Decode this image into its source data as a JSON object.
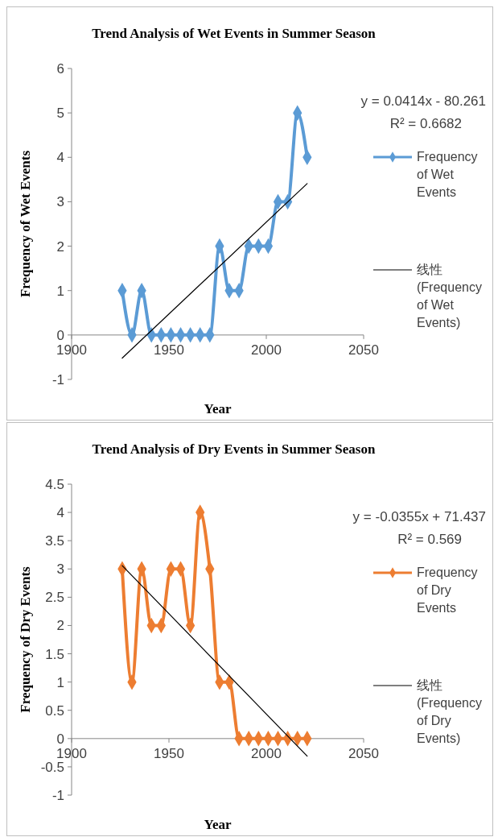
{
  "chart_data": [
    {
      "type": "line",
      "title": "Trend Analysis of Wet Events in Summer Season",
      "xlabel": "Year",
      "ylabel": "Frequency of Wet Events",
      "xlim": [
        1900,
        2050
      ],
      "xticks": [
        1900,
        1950,
        2000,
        2050
      ],
      "ylim": [
        -1,
        6
      ],
      "yticks": [
        -1,
        0,
        1,
        2,
        3,
        4,
        5,
        6
      ],
      "legend": "right",
      "marker": "diamond",
      "series": [
        {
          "name": "Frequency of Wet Events",
          "color": "#5b9bd5",
          "x": [
            1926,
            1931,
            1936,
            1941,
            1946,
            1951,
            1956,
            1961,
            1966,
            1971,
            1976,
            1981,
            1986,
            1991,
            1996,
            2001,
            2006,
            2011,
            2016,
            2021
          ],
          "values": [
            1,
            0,
            1,
            0,
            0,
            0,
            0,
            0,
            0,
            0,
            2,
            1,
            1,
            2,
            2,
            2,
            3,
            3,
            5,
            4
          ]
        },
        {
          "name": "线性 (Frequency of Wet Events)",
          "color": "#000000",
          "marker": "none",
          "x": [
            1926,
            2021
          ],
          "values": [
            -0.52,
            3.41
          ]
        }
      ],
      "annotations": [
        "y = 0.0414x - 80.261",
        "R² = 0.6682"
      ]
    },
    {
      "type": "line",
      "title": "Trend Analysis of Dry Events in Summer Season",
      "xlabel": "Year",
      "ylabel": "Frequency of Dry Events",
      "xlim": [
        1900,
        2050
      ],
      "xticks": [
        1900,
        1950,
        2000,
        2050
      ],
      "ylim": [
        -1,
        4.5
      ],
      "yticks": [
        -1,
        -0.5,
        0,
        0.5,
        1,
        1.5,
        2,
        2.5,
        3,
        3.5,
        4,
        4.5
      ],
      "legend": "right",
      "marker": "diamond",
      "series": [
        {
          "name": "Frequency of Dry Events",
          "color": "#ed7d31",
          "x": [
            1926,
            1931,
            1936,
            1941,
            1946,
            1951,
            1956,
            1961,
            1966,
            1971,
            1976,
            1981,
            1986,
            1991,
            1996,
            2001,
            2006,
            2011,
            2016,
            2021
          ],
          "values": [
            3,
            1,
            3,
            2,
            2,
            3,
            3,
            2,
            4,
            3,
            1,
            1,
            0,
            0,
            0,
            0,
            0,
            0,
            0,
            0
          ]
        },
        {
          "name": "线性 (Frequency of Dry Events)",
          "color": "#000000",
          "marker": "none",
          "x": [
            1926,
            2021
          ],
          "values": [
            3.06,
            -0.31
          ]
        }
      ],
      "annotations": [
        "y = -0.0355x + 71.437",
        "R² = 0.569"
      ]
    }
  ]
}
